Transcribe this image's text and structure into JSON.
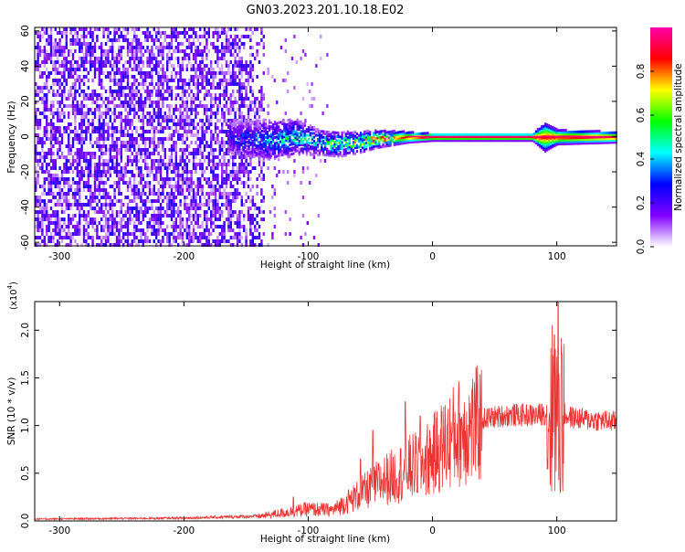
{
  "title": "GN03.2023.201.10.18.E02",
  "chart_data": [
    {
      "type": "heatmap",
      "xlabel": "Height of straight line (km)",
      "ylabel": "Frequency (Hz)",
      "xlim": [
        -320,
        148
      ],
      "ylim": [
        -62,
        62
      ],
      "x_ticks": [
        -300,
        -200,
        -100,
        0,
        100
      ],
      "y_ticks": [
        -60,
        -40,
        -20,
        0,
        20,
        40,
        60
      ],
      "colorbar": {
        "label": "Normalized spectral amplitude",
        "range": [
          0,
          1
        ],
        "ticks": [
          "0.0",
          "0.2",
          "0.4",
          "0.6",
          "0.8"
        ],
        "colors": [
          "#ffffff",
          "#8000ff",
          "#0000ff",
          "#00ffff",
          "#00ff00",
          "#ffff00",
          "#ff0000",
          "#ff00aa"
        ]
      },
      "noise_region_x": [
        -320,
        -135
      ],
      "sparse_region_x": [
        -135,
        -85
      ],
      "signal_band": [
        {
          "x": -165,
          "f": 0,
          "halfwidth": 10,
          "amp": 0.25
        },
        {
          "x": -130,
          "f": -2,
          "halfwidth": 12,
          "amp": 0.35
        },
        {
          "x": -110,
          "f": 0,
          "halfwidth": 10,
          "amp": 0.45
        },
        {
          "x": -90,
          "f": -3,
          "halfwidth": 7,
          "amp": 0.45
        },
        {
          "x": -75,
          "f": -4,
          "halfwidth": 7,
          "amp": 0.55
        },
        {
          "x": -60,
          "f": -3,
          "halfwidth": 6,
          "amp": 0.6
        },
        {
          "x": -45,
          "f": -1,
          "halfwidth": 5,
          "amp": 0.75
        },
        {
          "x": -20,
          "f": 0,
          "halfwidth": 3,
          "amp": 0.9
        },
        {
          "x": 0,
          "f": 0,
          "halfwidth": 2,
          "amp": 0.95
        },
        {
          "x": 40,
          "f": 0,
          "halfwidth": 2,
          "amp": 0.95
        },
        {
          "x": 80,
          "f": 0,
          "halfwidth": 2,
          "amp": 0.95
        },
        {
          "x": 90,
          "f": 0,
          "halfwidth": 8,
          "amp": 0.9
        },
        {
          "x": 100,
          "f": 0,
          "halfwidth": 4,
          "amp": 0.95
        },
        {
          "x": 148,
          "f": 0,
          "halfwidth": 3,
          "amp": 0.95
        }
      ]
    },
    {
      "type": "line",
      "xlabel": "Height of straight line (km)",
      "ylabel": "SNR (10 * v/v)",
      "y_multiplier": "(x10",
      "y_multiplier_exp": "4",
      "y_multiplier_close": ")",
      "xlim": [
        -320,
        148
      ],
      "ylim": [
        0,
        2.3
      ],
      "x_ticks": [
        -300,
        -200,
        -100,
        0,
        100
      ],
      "y_ticks": [
        "0.0",
        "0.5",
        "1.0",
        "1.5",
        "2.0"
      ],
      "line_color": "#ee3333",
      "envelope_x": [
        -320,
        -200,
        -140,
        -120,
        -100,
        -80,
        -60,
        -40,
        -30,
        -20,
        -10,
        0,
        10,
        20,
        40,
        60,
        85,
        92,
        98,
        102,
        110,
        120,
        148
      ],
      "envelope_y": [
        0.02,
        0.03,
        0.05,
        0.09,
        0.13,
        0.12,
        0.28,
        0.45,
        0.5,
        0.58,
        0.62,
        0.72,
        0.85,
        0.97,
        1.08,
        1.12,
        1.12,
        1.15,
        1.2,
        1.15,
        1.1,
        1.08,
        1.05
      ],
      "peaks": [
        {
          "x": -112,
          "y": 0.25
        },
        {
          "x": -58,
          "y": 0.65
        },
        {
          "x": -48,
          "y": 0.95
        },
        {
          "x": -22,
          "y": 1.25
        },
        {
          "x": -10,
          "y": 1.1
        },
        {
          "x": 98,
          "y": 1.95
        },
        {
          "x": 101,
          "y": 2.3
        },
        {
          "x": 104,
          "y": 1.75
        }
      ]
    }
  ]
}
